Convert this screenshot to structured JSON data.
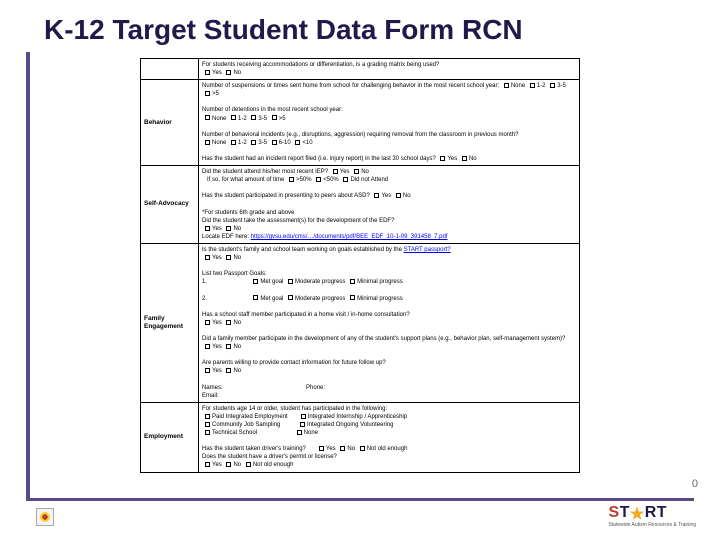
{
  "title": "K-12 Target Student Data Form RCN",
  "page_number": "0",
  "sections": {
    "accommodations": {
      "q": "For students receiving accommodations or differentiation, is a grading matrix being used?",
      "yes": "Yes",
      "no": "No"
    },
    "behavior": {
      "label": "Behavior",
      "suspensions_q": "Number of suspensions or times sent home from school for challenging behavior in the most recent school year:",
      "susp_opts": [
        "None",
        "1-2",
        "3-5",
        ">5"
      ],
      "detentions_q": "Number of detentions in the most recent school year:",
      "det_opts": [
        "None",
        "1-2",
        "3-5",
        ">5"
      ],
      "incidents_q": "Number of behavioral incidents (e.g., disruptions, aggression) requiring removal from the classroom in previous month?",
      "inc_opts": [
        "None",
        "1-2",
        "3-5",
        "6-10",
        "<10"
      ],
      "injury_q": "Has the student had an incident report filed (i.e. injury report) in the last 30 school days?",
      "yes": "Yes",
      "no": "No"
    },
    "self_advocacy": {
      "label": "Self-Advocacy",
      "iep_attend_q": "Did the student attend his/her most recent IEP?",
      "yes": "Yes",
      "no": "No",
      "iep_time_q": "If so, for what amount of time",
      "time_opts": [
        ">50%",
        "<50%",
        "Did not Attend"
      ],
      "asd_present_q": "Has the student participated in presenting to peers about ASD?",
      "grade_note": "*For students 6th grade and above",
      "assess_q": "Did the student take the assessment(s) for the development of the EDF?",
      "locate_label": "Locate EDF here:",
      "link_text": "https://gvsu.edu/cms/…/documents/pdf/BEE_EDF_10-1-09_391458_7.pdf"
    },
    "family": {
      "label": "Family Engagement",
      "passport_q": "Is the student's family and school team working on goals established by the",
      "passport_link": "START passport?",
      "yes": "Yes",
      "no": "No",
      "goals_title": "List two Passport Goals:",
      "g1": "1.",
      "g2": "2.",
      "met": "Met goal",
      "mod": "Moderate progress",
      "min": "Minimal progress",
      "home_visit_q": "Has a school staff member participated in a home visit / in-home consultation?",
      "support_plan_q": "Did a family member participate in the development of any of the student's support plans (e.g., behavior plan, self-management system)?",
      "contact_q": "Are parents willing to provide contact information for future follow up?",
      "names_label": "Names:",
      "email_label": "Email:",
      "phone_label": "Phone:"
    },
    "employment": {
      "label": "Employment",
      "age_q": "For students age 14 or older, student has participated in the following:",
      "opts": [
        "Paid Integrated Employment",
        "Integrated Internship / Apprenticeship",
        "Community Job Sampling",
        "Integrated Ongoing Volunteering",
        "Technical School",
        "None"
      ],
      "drivers_q": "Has the student taken driver's training?",
      "license_q": "Does the student have a driver's permit or license?",
      "yes": "Yes",
      "no": "No",
      "not_old": "Not old enough"
    }
  },
  "logo": {
    "brand": "START",
    "sub": "Statewide Autism Resources & Training"
  }
}
